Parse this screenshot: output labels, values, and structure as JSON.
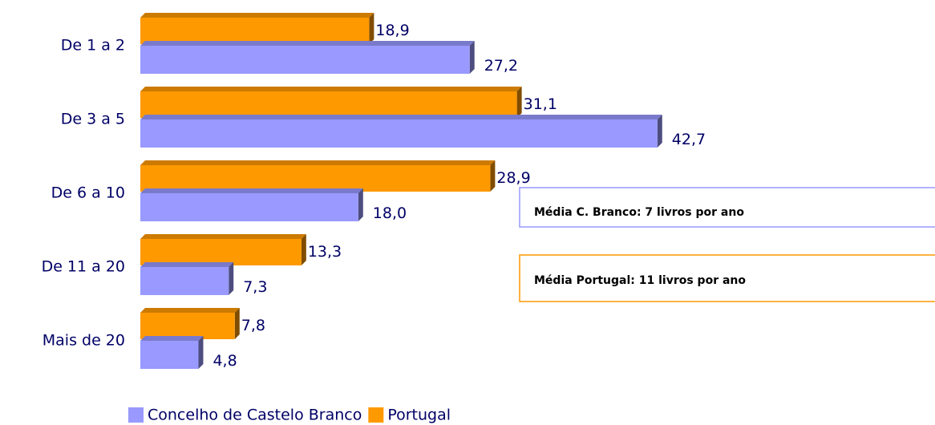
{
  "chart_data": {
    "type": "bar",
    "orientation": "horizontal",
    "categories": [
      "De 1 a 2",
      "De 3 a 5",
      "De 6 a 10",
      "De 11 a 20",
      "Mais de 20"
    ],
    "series": [
      {
        "name": "Concelho de Castelo Branco",
        "color": "#9999ff",
        "values": [
          27.2,
          42.7,
          18.0,
          7.3,
          4.8
        ],
        "value_labels": [
          "27,2",
          "42,7",
          "18,0",
          "7,3",
          "4,8"
        ]
      },
      {
        "name": "Portugal",
        "color": "#ff9900",
        "values": [
          18.9,
          31.1,
          28.9,
          13.3,
          7.8
        ],
        "value_labels": [
          "18,9",
          "31,1",
          "28,9",
          "13,3",
          "7,8"
        ]
      }
    ],
    "annotations": [
      "Média C. Branco: 7 livros por ano",
      "Média Portugal: 11 livros por ano"
    ]
  }
}
